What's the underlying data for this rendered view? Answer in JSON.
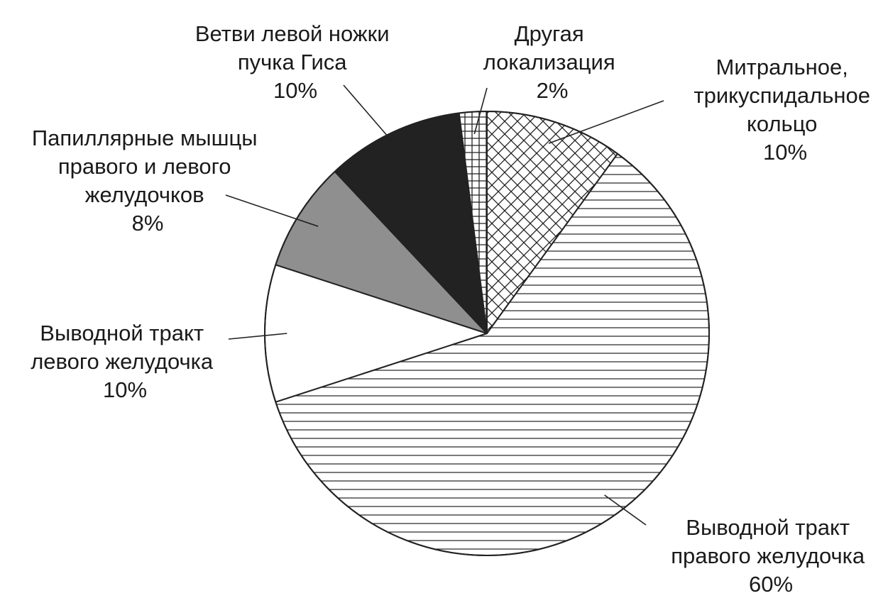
{
  "chart_data": {
    "type": "pie",
    "start_angle_deg": -90,
    "direction": "clockwise",
    "slices": [
      {
        "label_lines": [
          "Митральное,",
          "трикуспидальное",
          "кольцо"
        ],
        "percent_label": "10%",
        "value": 10,
        "fill": "crosshatch"
      },
      {
        "label_lines": [
          "Выводной тракт",
          "правого желудочка"
        ],
        "percent_label": "60%",
        "value": 60,
        "fill": "horizontal-lines"
      },
      {
        "label_lines": [
          "Выводной тракт",
          "левого желудочка"
        ],
        "percent_label": "10%",
        "value": 10,
        "fill": "white"
      },
      {
        "label_lines": [
          "Папиллярные мышцы",
          "правого и левого",
          "желудочков"
        ],
        "percent_label": "8%",
        "value": 8,
        "fill": "grey"
      },
      {
        "label_lines": [
          "Ветви левой ножки",
          "пучка Гиса"
        ],
        "percent_label": "10%",
        "value": 10,
        "fill": "black"
      },
      {
        "label_lines": [
          "Другая",
          "локализация"
        ],
        "percent_label": "2%",
        "value": 2,
        "fill": "grid"
      }
    ],
    "colors": {
      "grey": "#8f8f8f",
      "black": "#222222",
      "stroke": "#222222"
    }
  }
}
